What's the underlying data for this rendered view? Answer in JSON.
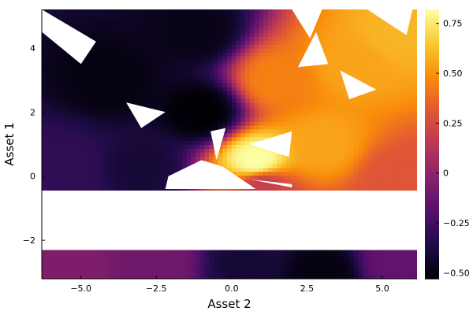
{
  "chart_data": {
    "type": "heatmap",
    "title": "",
    "xlabel": "Asset 2",
    "ylabel": "Asset 1",
    "xlim": [
      -6.3,
      6.15
    ],
    "ylim": [
      -3.2,
      5.2
    ],
    "x_ticks": [
      -5,
      -2.5,
      0,
      2.5,
      5
    ],
    "x_tick_labels": [
      "−5.0",
      "−2.5",
      "0.0",
      "2.5",
      "5.0"
    ],
    "y_ticks": [
      -2,
      0,
      2,
      4
    ],
    "y_tick_labels": [
      "−2",
      "0",
      "2",
      "4"
    ],
    "colorbar": {
      "colormap": "inferno",
      "range": [
        -0.53,
        0.82
      ],
      "ticks": [
        -0.5,
        -0.25,
        0,
        0.25,
        0.5,
        0.75
      ],
      "tick_labels": [
        "−0.50",
        "−0.25",
        "0",
        "0.25",
        "0.50",
        "0.75"
      ]
    },
    "grid": true,
    "regions": [
      {
        "name": "upper",
        "x_range": [
          -6.3,
          6.15
        ],
        "y_range": [
          -0.45,
          5.2
        ]
      },
      {
        "name": "lower",
        "x_range": [
          -6.3,
          6.15
        ],
        "y_range": [
          -3.2,
          -2.3
        ]
      }
    ],
    "surface_points": [
      {
        "x": 0.8,
        "y": 0.5,
        "value": 0.82
      },
      {
        "x": 5.5,
        "y": 4.5,
        "value": 0.6
      },
      {
        "x": 3.0,
        "y": 1.0,
        "value": 0.55
      },
      {
        "x": 4.0,
        "y": 3.5,
        "value": 0.55
      },
      {
        "x": 1.5,
        "y": 3.0,
        "value": 0.45
      },
      {
        "x": 1.0,
        "y": -0.3,
        "value": 0.2
      },
      {
        "x": 5.5,
        "y": 0.0,
        "value": 0.3
      },
      {
        "x": -1.0,
        "y": 2.0,
        "value": -0.53
      },
      {
        "x": -1.2,
        "y": 4.5,
        "value": -0.48
      },
      {
        "x": -4.0,
        "y": 3.0,
        "value": -0.5
      },
      {
        "x": -5.5,
        "y": 0.3,
        "value": -0.3
      },
      {
        "x": -3.0,
        "y": 0.3,
        "value": -0.4
      },
      {
        "x": -5.5,
        "y": -2.7,
        "value": -0.05
      },
      {
        "x": -2.5,
        "y": -2.7,
        "value": -0.1
      },
      {
        "x": 0.5,
        "y": -2.7,
        "value": -0.4
      },
      {
        "x": 3.0,
        "y": -3.0,
        "value": -0.5
      },
      {
        "x": 5.5,
        "y": -2.7,
        "value": -0.15
      }
    ]
  }
}
